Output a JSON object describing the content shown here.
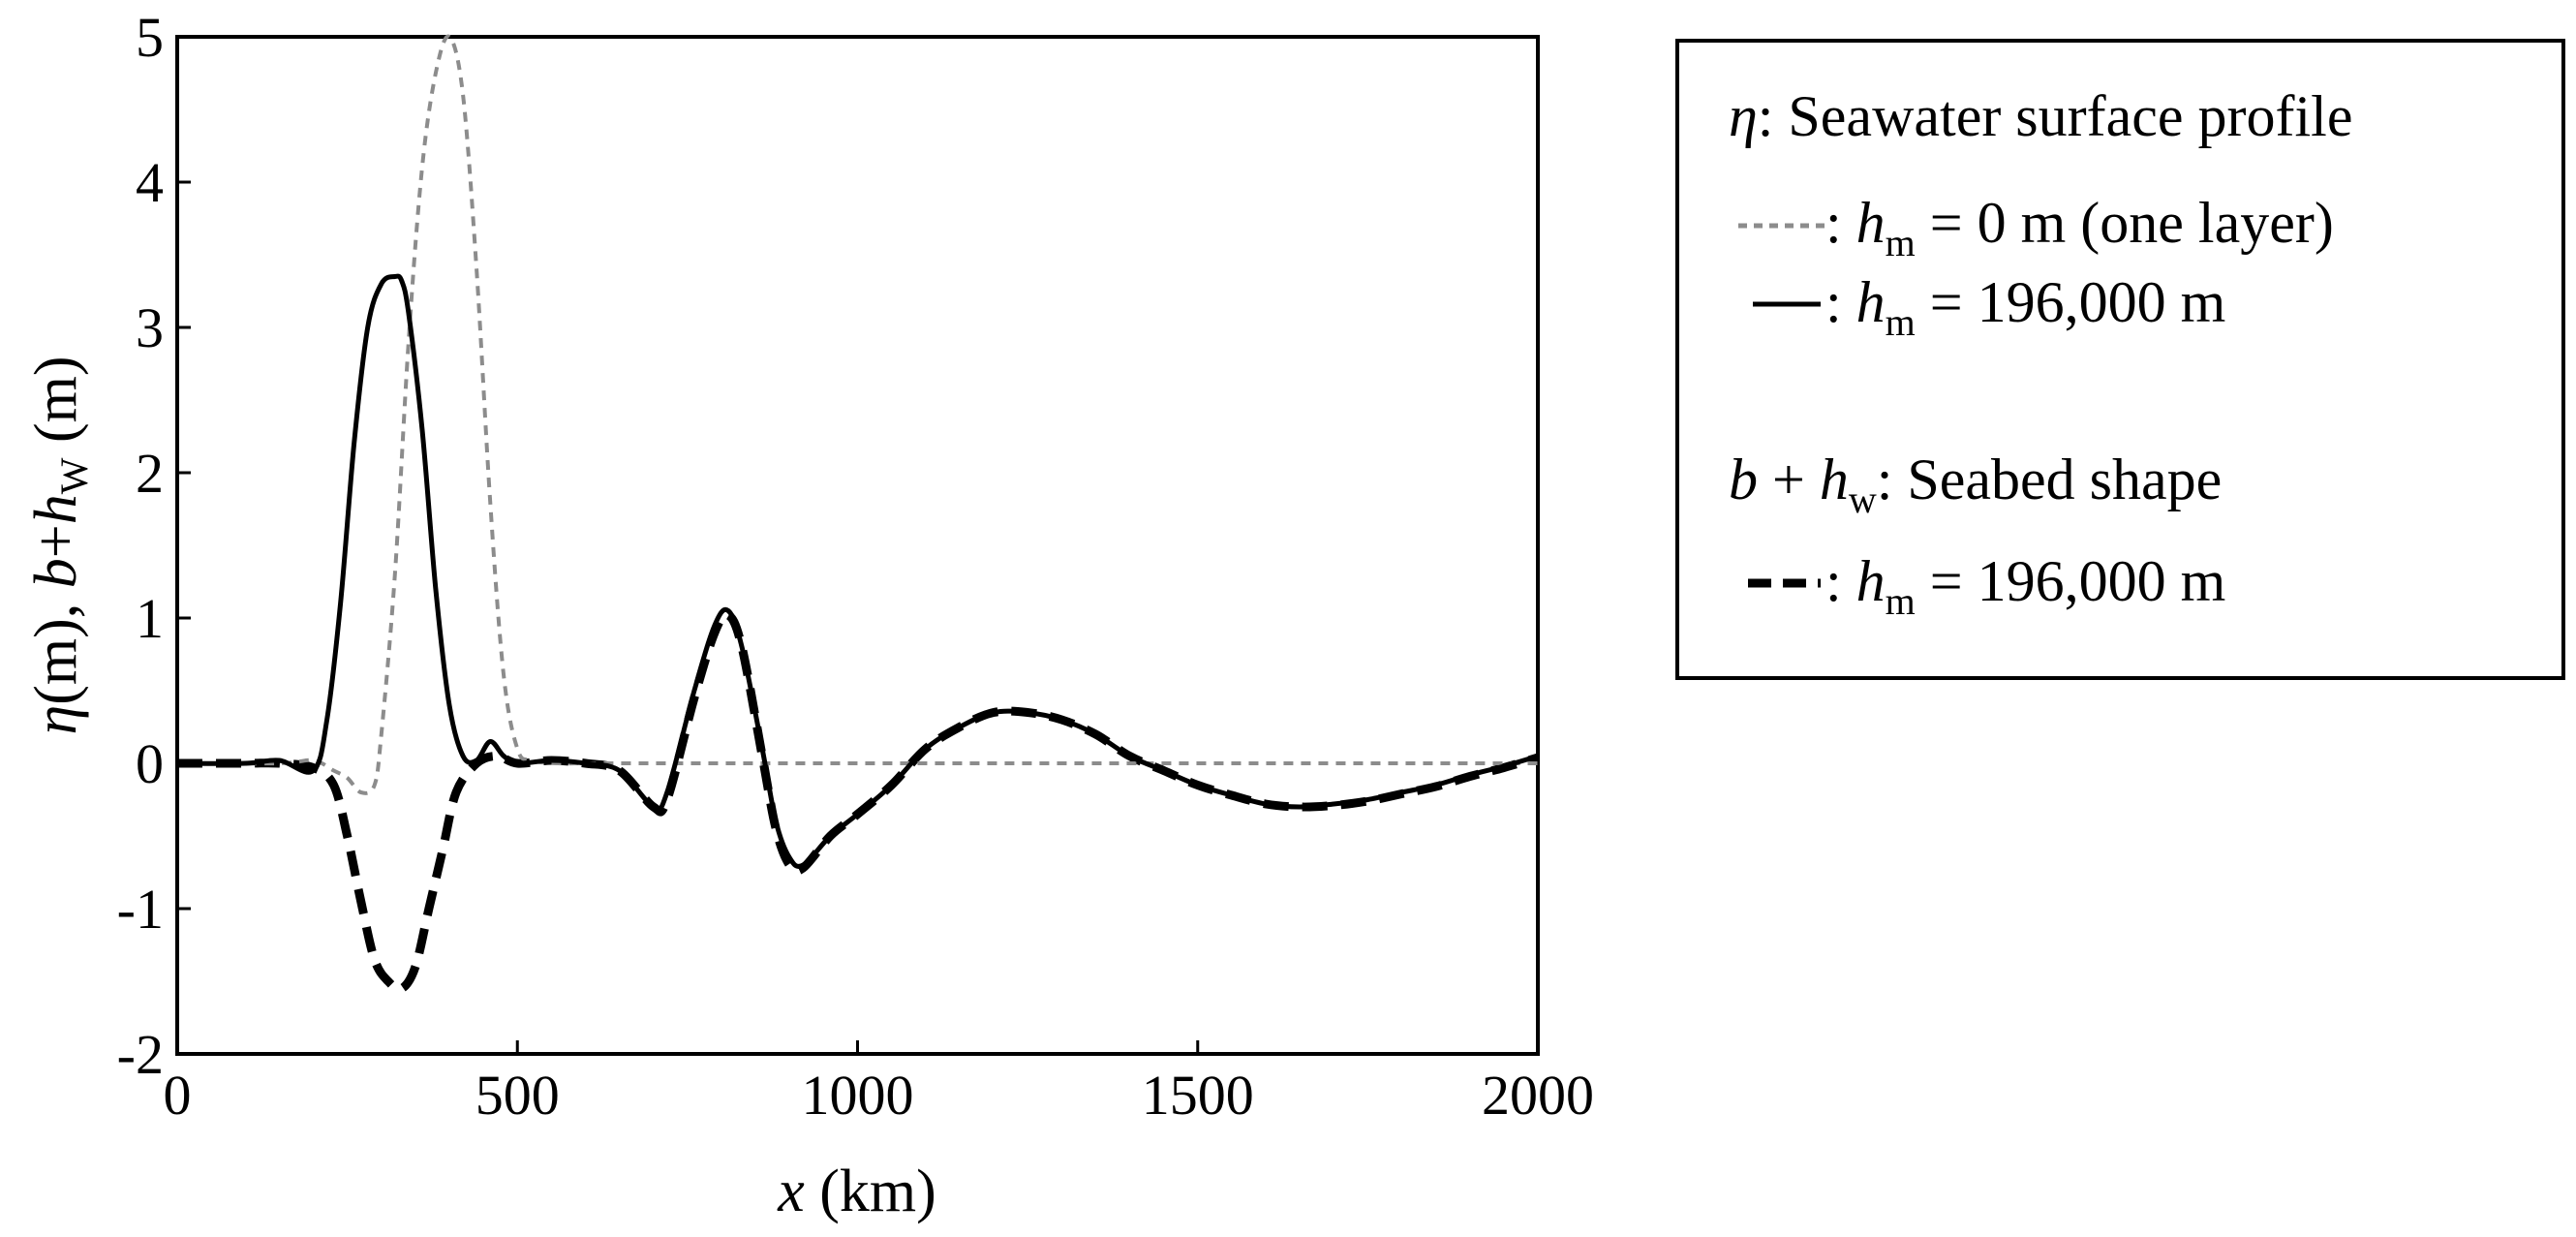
{
  "chart_data": {
    "type": "line",
    "title": "",
    "xlabel": {
      "var": "x",
      "unit": "(km)"
    },
    "ylabel": {
      "eta": "η",
      "unit1": "(m), ",
      "b": "b",
      "plus": "+",
      "h": "h",
      "sub": "W",
      "unit2": " (m)"
    },
    "xlim": [
      0,
      2000
    ],
    "ylim": [
      -2,
      5
    ],
    "xticks": [
      0,
      500,
      1000,
      1500,
      2000
    ],
    "yticks": [
      -2,
      -1,
      0,
      1,
      2,
      3,
      4,
      5
    ],
    "ytick_labels": [
      "-2",
      "-1",
      "0",
      "1",
      "2",
      "3",
      "4",
      "5"
    ],
    "xtick_labels": [
      "0",
      "500",
      "1000",
      "1500",
      "2000"
    ],
    "grid": false,
    "legend_position": "right-outside",
    "series": [
      {
        "name": "eta_hm0",
        "style": "gray-dotted",
        "x": [
          0,
          150,
          200,
          230,
          250,
          270,
          290,
          300,
          320,
          340,
          360,
          380,
          400,
          420,
          440,
          460,
          480,
          500,
          520,
          560,
          600,
          700,
          800,
          900,
          1000,
          1100,
          1200,
          1300,
          1400,
          1500,
          1600,
          1700,
          1800,
          1900,
          2000
        ],
        "y": [
          0,
          0,
          0.02,
          -0.05,
          -0.1,
          -0.2,
          -0.15,
          0.2,
          1.3,
          2.9,
          4.1,
          4.75,
          5.0,
          4.6,
          3.4,
          1.8,
          0.6,
          0.1,
          0.02,
          0,
          0,
          0,
          0,
          0,
          0,
          0,
          0,
          0,
          0,
          0,
          0,
          0,
          0,
          0,
          0
        ]
      },
      {
        "name": "eta_hm196000",
        "style": "solid",
        "x": [
          0,
          100,
          150,
          200,
          220,
          240,
          260,
          280,
          300,
          320,
          330,
          340,
          360,
          380,
          400,
          420,
          440,
          460,
          480,
          500,
          550,
          600,
          650,
          700,
          720,
          760,
          790,
          810,
          830,
          860,
          880,
          900,
          920,
          960,
          1000,
          1050,
          1100,
          1150,
          1200,
          1250,
          1300,
          1350,
          1400,
          1450,
          1500,
          1550,
          1600,
          1650,
          1700,
          1750,
          1800,
          1850,
          1900,
          1950,
          2000
        ],
        "y": [
          0,
          0,
          0.02,
          -0.05,
          0.3,
          1.1,
          2.2,
          3.0,
          3.3,
          3.35,
          3.32,
          3.1,
          2.3,
          1.2,
          0.4,
          0.05,
          0.02,
          0.15,
          0.05,
          0,
          0.02,
          0,
          -0.05,
          -0.3,
          -0.2,
          0.5,
          0.95,
          1.05,
          0.8,
          0.1,
          -0.4,
          -0.65,
          -0.7,
          -0.5,
          -0.35,
          -0.15,
          0.1,
          0.25,
          0.35,
          0.35,
          0.3,
          0.2,
          0.05,
          -0.05,
          -0.15,
          -0.22,
          -0.28,
          -0.3,
          -0.28,
          -0.25,
          -0.2,
          -0.15,
          -0.08,
          -0.02,
          0.05
        ]
      },
      {
        "name": "seabed_hm196000",
        "style": "dashed-thick",
        "x": [
          0,
          100,
          150,
          200,
          230,
          250,
          270,
          290,
          310,
          330,
          350,
          370,
          390,
          410,
          440,
          470,
          500,
          550,
          600,
          650,
          700,
          720,
          760,
          790,
          810,
          830,
          860,
          880,
          900,
          920,
          960,
          1000,
          1050,
          1100,
          1150,
          1200,
          1250,
          1300,
          1350,
          1400,
          1450,
          1500,
          1550,
          1600,
          1650,
          1700,
          1750,
          1800,
          1850,
          1900,
          1950,
          2000
        ],
        "y": [
          0,
          0,
          0,
          -0.03,
          -0.15,
          -0.5,
          -0.95,
          -1.35,
          -1.5,
          -1.55,
          -1.4,
          -1.0,
          -0.6,
          -0.2,
          0.0,
          0.05,
          0,
          0.02,
          0,
          -0.05,
          -0.3,
          -0.25,
          0.45,
          0.9,
          1.02,
          0.8,
          0.05,
          -0.45,
          -0.7,
          -0.72,
          -0.5,
          -0.35,
          -0.15,
          0.1,
          0.25,
          0.35,
          0.35,
          0.3,
          0.2,
          0.05,
          -0.05,
          -0.15,
          -0.22,
          -0.28,
          -0.3,
          -0.29,
          -0.26,
          -0.21,
          -0.16,
          -0.09,
          -0.03,
          0.04
        ]
      }
    ]
  },
  "legend": {
    "heading1": {
      "sym": "η",
      "rest": ": Seawater surface profile"
    },
    "entry1": {
      "colon": ": ",
      "h": "h",
      "sub": "m",
      "rest": " = 0 m (one layer)"
    },
    "entry2": {
      "colon": ": ",
      "h": "h",
      "sub": "m",
      "rest": " = 196,000 m"
    },
    "heading2": {
      "b": "b",
      "plus": " + ",
      "h": "h",
      "sub": "w",
      "rest": ": Seabed shape"
    },
    "entry3": {
      "colon": ": ",
      "h": "h",
      "sub": "m",
      "rest": " = 196,000 m"
    }
  }
}
